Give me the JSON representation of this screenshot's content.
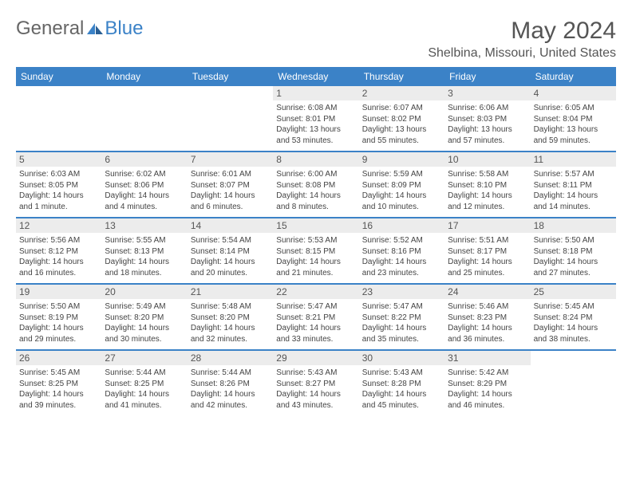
{
  "brand": {
    "part1": "General",
    "part2": "Blue"
  },
  "title": "May 2024",
  "location": "Shelbina, Missouri, United States",
  "colors": {
    "header_bg": "#3b82c7",
    "daynum_bg": "#ececec",
    "text": "#444444",
    "title_text": "#555555",
    "divider": "#3b82c7"
  },
  "typography": {
    "title_fontsize": 30,
    "location_fontsize": 16,
    "header_fontsize": 12,
    "daynum_fontsize": 12,
    "body_fontsize": 10
  },
  "day_names": [
    "Sunday",
    "Monday",
    "Tuesday",
    "Wednesday",
    "Thursday",
    "Friday",
    "Saturday"
  ],
  "weeks": [
    [
      null,
      null,
      null,
      {
        "n": "1",
        "sr": "Sunrise: 6:08 AM",
        "ss": "Sunset: 8:01 PM",
        "d1": "Daylight: 13 hours",
        "d2": "and 53 minutes."
      },
      {
        "n": "2",
        "sr": "Sunrise: 6:07 AM",
        "ss": "Sunset: 8:02 PM",
        "d1": "Daylight: 13 hours",
        "d2": "and 55 minutes."
      },
      {
        "n": "3",
        "sr": "Sunrise: 6:06 AM",
        "ss": "Sunset: 8:03 PM",
        "d1": "Daylight: 13 hours",
        "d2": "and 57 minutes."
      },
      {
        "n": "4",
        "sr": "Sunrise: 6:05 AM",
        "ss": "Sunset: 8:04 PM",
        "d1": "Daylight: 13 hours",
        "d2": "and 59 minutes."
      }
    ],
    [
      {
        "n": "5",
        "sr": "Sunrise: 6:03 AM",
        "ss": "Sunset: 8:05 PM",
        "d1": "Daylight: 14 hours",
        "d2": "and 1 minute."
      },
      {
        "n": "6",
        "sr": "Sunrise: 6:02 AM",
        "ss": "Sunset: 8:06 PM",
        "d1": "Daylight: 14 hours",
        "d2": "and 4 minutes."
      },
      {
        "n": "7",
        "sr": "Sunrise: 6:01 AM",
        "ss": "Sunset: 8:07 PM",
        "d1": "Daylight: 14 hours",
        "d2": "and 6 minutes."
      },
      {
        "n": "8",
        "sr": "Sunrise: 6:00 AM",
        "ss": "Sunset: 8:08 PM",
        "d1": "Daylight: 14 hours",
        "d2": "and 8 minutes."
      },
      {
        "n": "9",
        "sr": "Sunrise: 5:59 AM",
        "ss": "Sunset: 8:09 PM",
        "d1": "Daylight: 14 hours",
        "d2": "and 10 minutes."
      },
      {
        "n": "10",
        "sr": "Sunrise: 5:58 AM",
        "ss": "Sunset: 8:10 PM",
        "d1": "Daylight: 14 hours",
        "d2": "and 12 minutes."
      },
      {
        "n": "11",
        "sr": "Sunrise: 5:57 AM",
        "ss": "Sunset: 8:11 PM",
        "d1": "Daylight: 14 hours",
        "d2": "and 14 minutes."
      }
    ],
    [
      {
        "n": "12",
        "sr": "Sunrise: 5:56 AM",
        "ss": "Sunset: 8:12 PM",
        "d1": "Daylight: 14 hours",
        "d2": "and 16 minutes."
      },
      {
        "n": "13",
        "sr": "Sunrise: 5:55 AM",
        "ss": "Sunset: 8:13 PM",
        "d1": "Daylight: 14 hours",
        "d2": "and 18 minutes."
      },
      {
        "n": "14",
        "sr": "Sunrise: 5:54 AM",
        "ss": "Sunset: 8:14 PM",
        "d1": "Daylight: 14 hours",
        "d2": "and 20 minutes."
      },
      {
        "n": "15",
        "sr": "Sunrise: 5:53 AM",
        "ss": "Sunset: 8:15 PM",
        "d1": "Daylight: 14 hours",
        "d2": "and 21 minutes."
      },
      {
        "n": "16",
        "sr": "Sunrise: 5:52 AM",
        "ss": "Sunset: 8:16 PM",
        "d1": "Daylight: 14 hours",
        "d2": "and 23 minutes."
      },
      {
        "n": "17",
        "sr": "Sunrise: 5:51 AM",
        "ss": "Sunset: 8:17 PM",
        "d1": "Daylight: 14 hours",
        "d2": "and 25 minutes."
      },
      {
        "n": "18",
        "sr": "Sunrise: 5:50 AM",
        "ss": "Sunset: 8:18 PM",
        "d1": "Daylight: 14 hours",
        "d2": "and 27 minutes."
      }
    ],
    [
      {
        "n": "19",
        "sr": "Sunrise: 5:50 AM",
        "ss": "Sunset: 8:19 PM",
        "d1": "Daylight: 14 hours",
        "d2": "and 29 minutes."
      },
      {
        "n": "20",
        "sr": "Sunrise: 5:49 AM",
        "ss": "Sunset: 8:20 PM",
        "d1": "Daylight: 14 hours",
        "d2": "and 30 minutes."
      },
      {
        "n": "21",
        "sr": "Sunrise: 5:48 AM",
        "ss": "Sunset: 8:20 PM",
        "d1": "Daylight: 14 hours",
        "d2": "and 32 minutes."
      },
      {
        "n": "22",
        "sr": "Sunrise: 5:47 AM",
        "ss": "Sunset: 8:21 PM",
        "d1": "Daylight: 14 hours",
        "d2": "and 33 minutes."
      },
      {
        "n": "23",
        "sr": "Sunrise: 5:47 AM",
        "ss": "Sunset: 8:22 PM",
        "d1": "Daylight: 14 hours",
        "d2": "and 35 minutes."
      },
      {
        "n": "24",
        "sr": "Sunrise: 5:46 AM",
        "ss": "Sunset: 8:23 PM",
        "d1": "Daylight: 14 hours",
        "d2": "and 36 minutes."
      },
      {
        "n": "25",
        "sr": "Sunrise: 5:45 AM",
        "ss": "Sunset: 8:24 PM",
        "d1": "Daylight: 14 hours",
        "d2": "and 38 minutes."
      }
    ],
    [
      {
        "n": "26",
        "sr": "Sunrise: 5:45 AM",
        "ss": "Sunset: 8:25 PM",
        "d1": "Daylight: 14 hours",
        "d2": "and 39 minutes."
      },
      {
        "n": "27",
        "sr": "Sunrise: 5:44 AM",
        "ss": "Sunset: 8:25 PM",
        "d1": "Daylight: 14 hours",
        "d2": "and 41 minutes."
      },
      {
        "n": "28",
        "sr": "Sunrise: 5:44 AM",
        "ss": "Sunset: 8:26 PM",
        "d1": "Daylight: 14 hours",
        "d2": "and 42 minutes."
      },
      {
        "n": "29",
        "sr": "Sunrise: 5:43 AM",
        "ss": "Sunset: 8:27 PM",
        "d1": "Daylight: 14 hours",
        "d2": "and 43 minutes."
      },
      {
        "n": "30",
        "sr": "Sunrise: 5:43 AM",
        "ss": "Sunset: 8:28 PM",
        "d1": "Daylight: 14 hours",
        "d2": "and 45 minutes."
      },
      {
        "n": "31",
        "sr": "Sunrise: 5:42 AM",
        "ss": "Sunset: 8:29 PM",
        "d1": "Daylight: 14 hours",
        "d2": "and 46 minutes."
      },
      null
    ]
  ]
}
